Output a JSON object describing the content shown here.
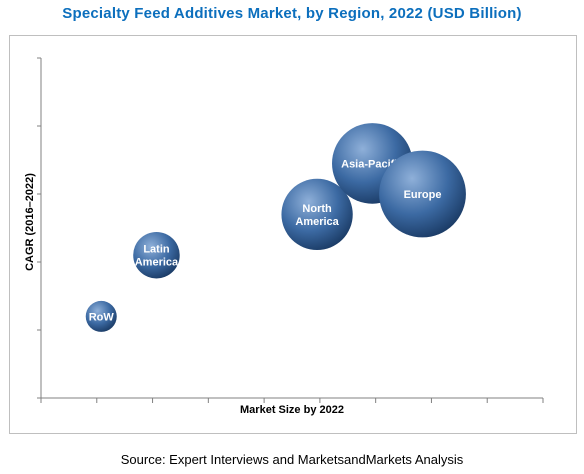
{
  "title": "Specialty Feed Additives Market, by Region, 2022 (USD Billion)",
  "source": "Source: Expert Interviews and MarketsandMarkets  Analysis",
  "colors": {
    "title": "#0c6fbd",
    "bubble_light": "#8fb0d9",
    "bubble_mid": "#3c6aa3",
    "bubble_dark": "#17365f",
    "axis": "#808080"
  },
  "chart_data": {
    "type": "bubble",
    "title": "Specialty Feed Additives Market, by Region, 2022 (USD Billion)",
    "xlabel": "Market Size by 2022",
    "ylabel": "CAGR (2016–2022)",
    "x_tick_labels": [],
    "y_tick_labels": [],
    "xlim": [
      0,
      10
    ],
    "ylim": [
      0,
      10
    ],
    "grid": false,
    "legend": "none",
    "points": [
      {
        "label": [
          "RoW"
        ],
        "x": 1.2,
        "y": 2.4,
        "size": 1.0
      },
      {
        "label": [
          "Latin",
          "America"
        ],
        "x": 2.3,
        "y": 4.2,
        "size": 1.5
      },
      {
        "label": [
          "North",
          "America"
        ],
        "x": 5.5,
        "y": 5.4,
        "size": 2.3
      },
      {
        "label": [
          "Asia-Pacific"
        ],
        "x": 6.6,
        "y": 6.9,
        "size": 2.6
      },
      {
        "label": [
          "Europe"
        ],
        "x": 7.6,
        "y": 6.0,
        "size": 2.8
      }
    ]
  }
}
